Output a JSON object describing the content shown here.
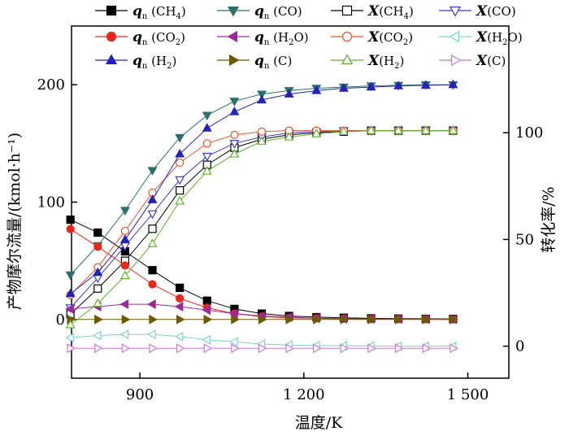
{
  "chart_data": {
    "type": "line",
    "xlabel": "温度/K",
    "ylabel_left": "产物摩尔流量/(kmol·h⁻¹)",
    "ylabel_right": "转化率/%",
    "xlim": [
      775,
      1575
    ],
    "ylim_left": [
      -50,
      250
    ],
    "ylim_right": [
      -15,
      150
    ],
    "x_ticks": [
      900,
      1200,
      1500
    ],
    "x_tick_labels": [
      "900",
      "1 200",
      "1 500"
    ],
    "y_left_ticks": [
      0,
      100,
      200
    ],
    "y_right_ticks": [
      0,
      50,
      100
    ],
    "grid": false,
    "legend_position": "top (three columns, inside plot)",
    "x": [
      773,
      823,
      873,
      923,
      973,
      1023,
      1073,
      1123,
      1173,
      1223,
      1273,
      1323,
      1373,
      1423,
      1473
    ],
    "series": [
      {
        "name": "qn(CH4)",
        "legend_main": "q",
        "legend_sub": "n",
        "legend_suffix": "(CH",
        "legend_suffix_sub": "4",
        "legend_suffix_end": ")",
        "axis": "left",
        "color": "#000000",
        "marker": "square",
        "filled": true,
        "values": [
          85,
          74,
          58,
          42,
          27,
          16,
          9,
          5,
          3,
          2,
          1.5,
          1,
          0.8,
          0.6,
          0.5
        ]
      },
      {
        "name": "qn(CO)",
        "legend_main": "q",
        "legend_sub": "n",
        "legend_suffix": "(CO)",
        "legend_suffix_sub": "",
        "legend_suffix_end": "",
        "axis": "left",
        "color": "#2f6f6a",
        "marker": "triangle-down",
        "filled": true,
        "values": [
          38,
          63,
          93,
          127,
          155,
          174,
          186,
          192,
          195,
          197,
          198,
          199,
          199.5,
          200,
          200
        ]
      },
      {
        "name": "X(CH4)",
        "legend_main": "X",
        "legend_sub": "",
        "legend_suffix": "(CH",
        "legend_suffix_sub": "4",
        "legend_suffix_end": ")",
        "axis": "right",
        "color": "#000000",
        "marker": "square",
        "filled": false,
        "values": [
          15,
          27,
          40,
          55,
          73,
          85,
          93,
          97,
          99,
          100,
          100.5,
          101,
          101,
          101,
          101
        ]
      },
      {
        "name": "X(CO)",
        "legend_main": "X",
        "legend_sub": "",
        "legend_suffix": "(CO)",
        "legend_suffix_sub": "",
        "legend_suffix_end": "",
        "axis": "right",
        "color": "#3a3ad0",
        "marker": "triangle-down",
        "filled": false,
        "values": [
          18,
          32,
          47,
          62,
          78,
          89,
          95,
          98,
          100,
          100.5,
          101,
          101,
          101,
          101,
          101
        ]
      },
      {
        "name": "qn(CO2)",
        "legend_main": "q",
        "legend_sub": "n",
        "legend_suffix": "(CO",
        "legend_suffix_sub": "2",
        "legend_suffix_end": ")",
        "axis": "left",
        "color": "#e8281e",
        "marker": "circle",
        "filled": true,
        "values": [
          77,
          62,
          46,
          30,
          18,
          10,
          5,
          2.5,
          1.5,
          1,
          0.6,
          0.4,
          0.3,
          0.2,
          0.1
        ]
      },
      {
        "name": "qn(H2O)",
        "legend_main": "q",
        "legend_sub": "n",
        "legend_suffix": "(H",
        "legend_suffix_sub": "2",
        "legend_suffix_end": "O)",
        "axis": "left",
        "color": "#9a2a9a",
        "marker": "triangle-left",
        "filled": true,
        "values": [
          9,
          11,
          13,
          13,
          11,
          8,
          5,
          3,
          2,
          1,
          0.6,
          0.4,
          0.3,
          0.2,
          0.1
        ]
      },
      {
        "name": "X(CO2)",
        "legend_main": "X",
        "legend_sub": "",
        "legend_suffix": "(CO",
        "legend_suffix_sub": "2",
        "legend_suffix_end": ")",
        "axis": "right",
        "color": "#e8542e",
        "marker": "circle",
        "filled": false,
        "values": [
          24,
          37,
          54,
          72,
          86,
          95,
          99,
          100.5,
          101,
          101,
          101,
          101,
          101,
          101,
          101
        ]
      },
      {
        "name": "X(H2O)",
        "legend_main": "X",
        "legend_sub": "",
        "legend_suffix": "(H",
        "legend_suffix_sub": "2",
        "legend_suffix_end": "O)",
        "axis": "right",
        "color": "#7fd0d0",
        "marker": "triangle-left",
        "filled": false,
        "values": [
          4,
          5,
          5.5,
          5.5,
          4.5,
          3,
          2,
          1,
          0.5,
          0.3,
          0.2,
          0.1,
          0,
          0,
          0
        ]
      },
      {
        "name": "qn(H2)",
        "legend_main": "q",
        "legend_sub": "n",
        "legend_suffix": "(H",
        "legend_suffix_sub": "2",
        "legend_suffix_end": ")",
        "axis": "left",
        "color": "#2323b4",
        "marker": "triangle-up",
        "filled": true,
        "values": [
          22,
          40,
          68,
          102,
          141,
          163,
          177,
          187,
          192,
          195,
          197,
          198,
          199,
          199.5,
          200
        ]
      },
      {
        "name": "qn(C)",
        "legend_main": "q",
        "legend_sub": "n",
        "legend_suffix": "(C)",
        "legend_suffix_sub": "",
        "legend_suffix_end": "",
        "axis": "left",
        "color": "#6b5a00",
        "marker": "triangle-right",
        "filled": true,
        "values": [
          0,
          0,
          0,
          0,
          0,
          0,
          0,
          0,
          0,
          0,
          0,
          0,
          0,
          0,
          0
        ]
      },
      {
        "name": "X(H2)",
        "legend_main": "X",
        "legend_sub": "",
        "legend_suffix": "(H",
        "legend_suffix_sub": "2",
        "legend_suffix_end": ")",
        "axis": "right",
        "color": "#5fb030",
        "marker": "triangle-up",
        "filled": false,
        "values": [
          10,
          20,
          33,
          48,
          68,
          82,
          90,
          96,
          98,
          99.5,
          100.5,
          101,
          101,
          101,
          101
        ]
      },
      {
        "name": "X(C)",
        "legend_main": "X",
        "legend_sub": "",
        "legend_suffix": "(C)",
        "legend_suffix_sub": "",
        "legend_suffix_end": "",
        "axis": "right",
        "color": "#c87ad8",
        "marker": "triangle-right",
        "filled": false,
        "values": [
          -1,
          -1,
          -1,
          -1,
          -1,
          -1,
          -1,
          -1,
          -1,
          -1,
          -1,
          -1,
          -1,
          -1,
          -1
        ]
      }
    ]
  }
}
